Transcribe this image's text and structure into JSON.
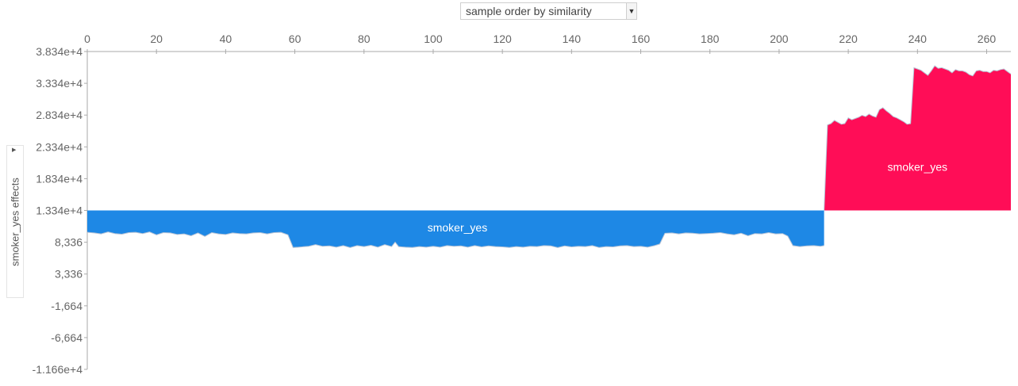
{
  "controls": {
    "order_selected": "sample order by similarity"
  },
  "chart_data": {
    "type": "area",
    "title": "",
    "xlabel": "",
    "ylabel": "smoker_yes effects",
    "x_ticks": [
      0,
      20,
      40,
      60,
      80,
      100,
      120,
      140,
      160,
      180,
      200,
      220,
      240,
      260
    ],
    "y_ticks": [
      38340,
      33340,
      28340,
      23340,
      18340,
      13340,
      8336,
      3336,
      -1664,
      -6664,
      -11660
    ],
    "y_tick_labels": [
      "3.834e+4",
      "3.334e+4",
      "2.834e+4",
      "2.334e+4",
      "1.834e+4",
      "1.334e+4",
      "8,336",
      "3,336",
      "-1,664",
      "-6,664",
      "-1.166e+4"
    ],
    "xlim": [
      0,
      267
    ],
    "ylim": [
      -11660,
      38340
    ],
    "base_value": 13340,
    "colors": {
      "negative": "#1e88e5",
      "positive": "#ff0d57",
      "edge": "#b8c4d6"
    },
    "series": [
      {
        "name": "smoker_yes",
        "label_position": [
          107,
          10680
        ],
        "x": [
          0,
          2,
          4,
          6,
          8,
          10,
          12,
          14,
          16,
          18,
          20,
          22,
          24,
          26,
          28,
          30,
          32,
          34,
          36,
          38,
          40,
          42,
          44,
          46,
          48,
          50,
          52,
          54,
          56,
          58,
          59.5,
          61,
          64,
          66,
          68,
          70,
          72,
          74,
          76,
          78,
          80,
          82,
          84,
          86,
          88,
          89,
          90,
          92,
          94,
          96,
          98,
          100,
          102,
          104,
          106,
          108,
          110,
          112,
          114,
          116,
          118,
          120,
          122,
          124,
          126,
          128,
          130,
          132,
          134,
          136,
          138,
          140,
          142,
          144,
          146,
          148,
          150,
          152,
          154,
          156,
          158,
          160,
          162,
          164,
          165.5,
          167,
          169,
          171,
          173,
          175,
          177,
          179,
          181,
          183,
          185,
          187,
          189,
          191,
          193,
          195,
          197,
          199,
          201,
          202.5,
          204,
          206,
          208,
          210,
          212,
          213
        ],
        "y": [
          9900,
          9800,
          9650,
          9950,
          9700,
          9600,
          9850,
          9900,
          9700,
          9950,
          9500,
          9850,
          9800,
          9550,
          9650,
          9350,
          9800,
          9250,
          9850,
          9650,
          9550,
          9800,
          9700,
          9650,
          9800,
          9850,
          9650,
          9850,
          9900,
          9500,
          7500,
          7550,
          7700,
          7950,
          7700,
          7750,
          7550,
          7800,
          7500,
          7800,
          7650,
          7850,
          7550,
          7950,
          7650,
          8350,
          7650,
          7550,
          7500,
          7650,
          7550,
          7700,
          7550,
          7800,
          7700,
          7750,
          7550,
          7800,
          7600,
          7750,
          7650,
          7600,
          7500,
          7650,
          7550,
          7700,
          7650,
          7800,
          7750,
          7500,
          7750,
          7600,
          7700,
          7650,
          7800,
          7500,
          7650,
          7600,
          7750,
          7800,
          7650,
          7700,
          7550,
          7800,
          8050,
          9750,
          9800,
          9650,
          9800,
          9750,
          9650,
          9700,
          9750,
          9850,
          9650,
          9500,
          9750,
          9350,
          9700,
          9650,
          9850,
          9650,
          9700,
          9300,
          7800,
          7650,
          7750,
          7800,
          7700,
          7800
        ]
      },
      {
        "name": "smoker_yes",
        "label_position": [
          240,
          20180
        ],
        "x": [
          213,
          214,
          215,
          216,
          217,
          218,
          219,
          220,
          221,
          222,
          223,
          224,
          225,
          226,
          227,
          228,
          229,
          230,
          231,
          232,
          233,
          234,
          235,
          236,
          237,
          238,
          239,
          240,
          241,
          242,
          243,
          244,
          245,
          246,
          247,
          248,
          249,
          250,
          251,
          252,
          253,
          254,
          255,
          256,
          257,
          258,
          259,
          260,
          261,
          262,
          263,
          264,
          265,
          266,
          267
        ],
        "y": [
          13340,
          26800,
          27000,
          27500,
          27200,
          26900,
          27000,
          27900,
          27600,
          27800,
          28000,
          28300,
          28100,
          28500,
          28200,
          28000,
          29200,
          29500,
          29000,
          28600,
          28100,
          27900,
          27600,
          27300,
          26900,
          27000,
          35800,
          35600,
          35400,
          35000,
          34600,
          35300,
          36100,
          35700,
          35800,
          35600,
          35400,
          35000,
          35500,
          35300,
          35300,
          35100,
          34700,
          34500,
          35300,
          35400,
          35200,
          35200,
          35000,
          35400,
          35300,
          35500,
          35600,
          35200,
          34800
        ]
      }
    ]
  }
}
